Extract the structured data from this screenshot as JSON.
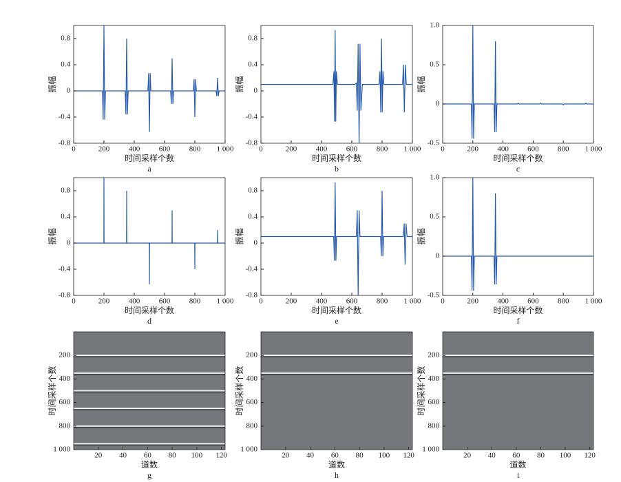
{
  "chart_data": [
    {
      "type": "line",
      "label": "a",
      "xlabel": "时间采样个数",
      "ylabel": "振幅",
      "color": "#2a5caa",
      "x": [
        0,
        190,
        195,
        200,
        205,
        210,
        340,
        345,
        350,
        355,
        360,
        490,
        495,
        500,
        505,
        510,
        640,
        645,
        650,
        655,
        660,
        790,
        795,
        800,
        805,
        810,
        940,
        945,
        950,
        955,
        960,
        1000
      ],
      "values": [
        0,
        0,
        -0.44,
        1.0,
        -0.44,
        0,
        0,
        -0.36,
        0.8,
        -0.36,
        0,
        0,
        0.27,
        -0.63,
        0.27,
        0,
        0,
        -0.2,
        0.5,
        -0.2,
        0,
        0,
        0.18,
        -0.4,
        0.18,
        0,
        0,
        -0.08,
        0.2,
        -0.08,
        0,
        0
      ],
      "xlim": [
        0,
        1000
      ],
      "ylim": [
        -0.8,
        1.0
      ],
      "xticks": [
        0,
        200,
        400,
        600,
        800,
        {
          "value": 1000,
          "label": "1 000"
        }
      ],
      "yticks": [
        -0.8,
        -0.4,
        0,
        0.4,
        0.8
      ]
    },
    {
      "type": "line",
      "label": "b",
      "xlabel": "时间采样个数",
      "ylabel": "振幅",
      "color": "#2a5caa",
      "x": [
        0,
        475,
        482,
        486,
        490,
        494,
        498,
        505,
        620,
        630,
        636,
        642,
        648,
        654,
        660,
        670,
        780,
        786,
        791,
        796,
        801,
        806,
        812,
        935,
        941,
        947,
        953,
        960,
        1000
      ],
      "values": [
        0.1,
        0.1,
        0.3,
        -0.47,
        0.93,
        -0.47,
        0.3,
        0.1,
        0.1,
        0.12,
        -0.3,
        0.72,
        -0.8,
        0.72,
        -0.3,
        0.1,
        0.1,
        0.3,
        -0.33,
        0.8,
        -0.33,
        0.3,
        0.1,
        0.1,
        0.4,
        -0.33,
        0.4,
        0.1,
        0.1
      ],
      "xlim": [
        0,
        1000
      ],
      "ylim": [
        -0.8,
        1.0
      ],
      "xticks": [
        0,
        200,
        400,
        600,
        800,
        {
          "value": 1000,
          "label": "1 000"
        }
      ],
      "yticks": [
        -0.8,
        -0.4,
        0,
        0.4,
        0.8
      ]
    },
    {
      "type": "line",
      "label": "c",
      "xlabel": "时间采样个数",
      "ylabel": "振幅",
      "color": "#2a5caa",
      "x": [
        0,
        190,
        195,
        200,
        205,
        210,
        340,
        345,
        350,
        355,
        360,
        495,
        500,
        505,
        645,
        650,
        655,
        795,
        800,
        805,
        945,
        950,
        955,
        1000
      ],
      "values": [
        0,
        0,
        -0.44,
        1.0,
        -0.44,
        0,
        0,
        -0.36,
        0.8,
        -0.36,
        0,
        0,
        0.01,
        0,
        0,
        0.01,
        0,
        0,
        -0.01,
        0,
        0,
        0.01,
        0,
        0
      ],
      "xlim": [
        0,
        1000
      ],
      "ylim": [
        -0.5,
        1.0
      ],
      "xticks": [
        0,
        200,
        400,
        600,
        800,
        {
          "value": 1000,
          "label": "1 000"
        }
      ],
      "yticks": [
        -0.5,
        0,
        0.5,
        {
          "value": 1,
          "label": "1.0"
        }
      ]
    },
    {
      "type": "line",
      "label": "d",
      "xlabel": "时间采样个数",
      "ylabel": "振幅",
      "color": "#2a5caa",
      "x": [
        0,
        199,
        200,
        201,
        349,
        350,
        351,
        499,
        500,
        501,
        649,
        650,
        651,
        799,
        800,
        801,
        949,
        950,
        951,
        1000
      ],
      "values": [
        0,
        0,
        1.0,
        0,
        0,
        0.8,
        0,
        0,
        -0.63,
        0,
        0,
        0.5,
        0,
        0,
        -0.4,
        0,
        0,
        0.2,
        0,
        0
      ],
      "xlim": [
        0,
        1000
      ],
      "ylim": [
        -0.8,
        1.0
      ],
      "xticks": [
        0,
        200,
        400,
        600,
        800,
        {
          "value": 1000,
          "label": "1 000"
        }
      ],
      "yticks": [
        -0.8,
        -0.4,
        0,
        0.4,
        0.8
      ]
    },
    {
      "type": "line",
      "label": "e",
      "xlabel": "时间采样个数",
      "ylabel": "振幅",
      "color": "#2a5caa",
      "x": [
        0,
        480,
        485,
        490,
        495,
        500,
        630,
        636,
        642,
        648,
        654,
        660,
        790,
        795,
        800,
        805,
        810,
        940,
        946,
        952,
        958,
        965,
        1000
      ],
      "values": [
        0.1,
        0.1,
        -0.27,
        0.93,
        -0.27,
        0.1,
        0.1,
        0.5,
        -0.8,
        0.5,
        0.1,
        0.1,
        0.1,
        -0.2,
        0.8,
        -0.2,
        0.1,
        0.1,
        0.3,
        -0.33,
        0.3,
        0.1,
        0.1
      ],
      "xlim": [
        0,
        1000
      ],
      "ylim": [
        -0.8,
        1.0
      ],
      "xticks": [
        0,
        200,
        400,
        600,
        800,
        {
          "value": 1000,
          "label": "1 000"
        }
      ],
      "yticks": [
        -0.8,
        -0.4,
        0,
        0.4,
        0.8
      ]
    },
    {
      "type": "line",
      "label": "f",
      "xlabel": "时间采样个数",
      "ylabel": "振幅",
      "color": "#2a5caa",
      "x": [
        0,
        190,
        195,
        200,
        205,
        210,
        340,
        345,
        350,
        355,
        360,
        1000
      ],
      "values": [
        0,
        0,
        -0.44,
        1.0,
        -0.44,
        0,
        0,
        -0.36,
        0.8,
        -0.36,
        0,
        0
      ],
      "xlim": [
        0,
        1000
      ],
      "ylim": [
        -0.5,
        1.0
      ],
      "xticks": [
        0,
        200,
        400,
        600,
        800,
        {
          "value": 1000,
          "label": "1 000"
        }
      ],
      "yticks": [
        -0.5,
        0,
        0.5,
        {
          "value": 1,
          "label": "1.0"
        }
      ]
    },
    {
      "type": "image",
      "label": "g",
      "xlabel": "道数",
      "ylabel": "时间采样个数",
      "color": "#76777a",
      "events": [
        200,
        350,
        500,
        650,
        800,
        950
      ],
      "xlim": [
        0,
        123
      ],
      "ylim": [
        1000,
        0
      ],
      "xticks": [
        20,
        40,
        60,
        80,
        100,
        120
      ],
      "yticks": [
        200,
        400,
        600,
        800,
        {
          "value": 1000,
          "label": "1 000"
        }
      ]
    },
    {
      "type": "image",
      "label": "h",
      "xlabel": "道数",
      "ylabel": "时间采样个数",
      "color": "#76777a",
      "events": [
        200,
        350
      ],
      "xlim": [
        0,
        123
      ],
      "ylim": [
        1000,
        0
      ],
      "xticks": [
        20,
        40,
        60,
        80,
        100,
        120
      ],
      "yticks": [
        200,
        400,
        600,
        800,
        {
          "value": 1000,
          "label": "1 000"
        }
      ]
    },
    {
      "type": "image",
      "label": "i",
      "xlabel": "道数",
      "ylabel": "时间采样个数",
      "color": "#76777a",
      "events": [
        200,
        350
      ],
      "xlim": [
        0,
        123
      ],
      "ylim": [
        1000,
        0
      ],
      "xticks": [
        20,
        40,
        60,
        80,
        100,
        120
      ],
      "yticks": [
        200,
        400,
        600,
        800,
        {
          "value": 1000,
          "label": "1 000"
        }
      ]
    }
  ]
}
